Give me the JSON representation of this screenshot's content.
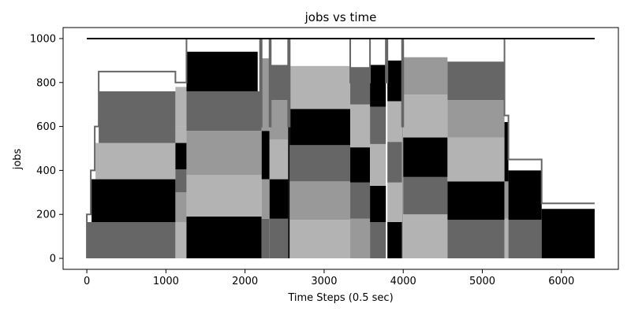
{
  "chart_data": {
    "type": "area",
    "title": "jobs vs time",
    "xlabel": "Time Steps (0.5 sec)",
    "ylabel": "jobs",
    "xlim": [
      -300,
      6720
    ],
    "ylim": [
      -50,
      1050
    ],
    "xticks": [
      0,
      1000,
      2000,
      3000,
      4000,
      5000,
      6000
    ],
    "yticks": [
      0,
      200,
      400,
      600,
      800,
      1000
    ],
    "grid": false,
    "legend": "none",
    "colors": {
      "black": "#000000",
      "dark_gray": "#666666",
      "mid_gray": "#999999",
      "light_gray": "#b3b3b3",
      "line_gray": "#666666"
    },
    "capacity_line": {
      "y": 1000,
      "x": [
        0,
        6420
      ]
    },
    "envelope": [
      [
        0,
        0
      ],
      [
        0,
        200
      ],
      [
        50,
        200
      ],
      [
        50,
        400
      ],
      [
        100,
        400
      ],
      [
        100,
        600
      ],
      [
        150,
        600
      ],
      [
        150,
        850
      ],
      [
        1120,
        850
      ],
      [
        1120,
        800
      ],
      [
        1260,
        800
      ],
      [
        1260,
        1000
      ],
      [
        2190,
        1000
      ],
      [
        2190,
        600
      ],
      [
        2210,
        600
      ],
      [
        2210,
        1000
      ],
      [
        2310,
        1000
      ],
      [
        2310,
        600
      ],
      [
        2325,
        600
      ],
      [
        2325,
        1000
      ],
      [
        2545,
        1000
      ],
      [
        2545,
        600
      ],
      [
        2565,
        600
      ],
      [
        2565,
        1000
      ],
      [
        3330,
        1000
      ],
      [
        3330,
        800
      ],
      [
        3580,
        800
      ],
      [
        3580,
        1000
      ],
      [
        3780,
        1000
      ],
      [
        3780,
        800
      ],
      [
        3800,
        800
      ],
      [
        3800,
        1000
      ],
      [
        3985,
        1000
      ],
      [
        3985,
        600
      ],
      [
        4000,
        600
      ],
      [
        4000,
        1000
      ],
      [
        5280,
        1000
      ],
      [
        5280,
        650
      ],
      [
        5330,
        650
      ],
      [
        5330,
        450
      ],
      [
        5750,
        450
      ],
      [
        5750,
        250
      ],
      [
        6420,
        250
      ]
    ],
    "blocks": [
      {
        "x": [
          0,
          1120
        ],
        "y": [
          0,
          165
        ],
        "shade": "dark_gray"
      },
      {
        "x": [
          60,
          1120
        ],
        "y": [
          165,
          360
        ],
        "shade": "black"
      },
      {
        "x": [
          110,
          1120
        ],
        "y": [
          360,
          525
        ],
        "shade": "light_gray"
      },
      {
        "x": [
          150,
          1120
        ],
        "y": [
          525,
          760
        ],
        "shade": "dark_gray"
      },
      {
        "x": [
          1120,
          1260
        ],
        "y": [
          0,
          165
        ],
        "shade": "light_gray"
      },
      {
        "x": [
          1120,
          1260
        ],
        "y": [
          165,
          300
        ],
        "shade": "mid_gray"
      },
      {
        "x": [
          1120,
          1260
        ],
        "y": [
          300,
          405
        ],
        "shade": "dark_gray"
      },
      {
        "x": [
          1120,
          1260
        ],
        "y": [
          405,
          525
        ],
        "shade": "black"
      },
      {
        "x": [
          1120,
          1260
        ],
        "y": [
          525,
          600
        ],
        "shade": "light_gray"
      },
      {
        "x": [
          1120,
          1260
        ],
        "y": [
          600,
          780
        ],
        "shade": "light_gray"
      },
      {
        "x": [
          1260,
          2210
        ],
        "y": [
          0,
          190
        ],
        "shade": "black"
      },
      {
        "x": [
          1260,
          2210
        ],
        "y": [
          190,
          380
        ],
        "shade": "light_gray"
      },
      {
        "x": [
          1260,
          2210
        ],
        "y": [
          380,
          580
        ],
        "shade": "mid_gray"
      },
      {
        "x": [
          1260,
          2210
        ],
        "y": [
          580,
          760
        ],
        "shade": "dark_gray"
      },
      {
        "x": [
          1260,
          2160
        ],
        "y": [
          760,
          940
        ],
        "shade": "black"
      },
      {
        "x": [
          2210,
          2310
        ],
        "y": [
          0,
          180
        ],
        "shade": "dark_gray"
      },
      {
        "x": [
          2210,
          2310
        ],
        "y": [
          180,
          360
        ],
        "shade": "mid_gray"
      },
      {
        "x": [
          2210,
          2310
        ],
        "y": [
          360,
          580
        ],
        "shade": "black"
      },
      {
        "x": [
          2210,
          2310
        ],
        "y": [
          580,
          910
        ],
        "shade": "mid_gray"
      },
      {
        "x": [
          2310,
          2545
        ],
        "y": [
          0,
          180
        ],
        "shade": "dark_gray"
      },
      {
        "x": [
          2310,
          2545
        ],
        "y": [
          180,
          360
        ],
        "shade": "black"
      },
      {
        "x": [
          2310,
          2545
        ],
        "y": [
          360,
          540
        ],
        "shade": "light_gray"
      },
      {
        "x": [
          2310,
          2545
        ],
        "y": [
          540,
          720
        ],
        "shade": "mid_gray"
      },
      {
        "x": [
          2310,
          2545
        ],
        "y": [
          720,
          880
        ],
        "shade": "dark_gray"
      },
      {
        "x": [
          2545,
          2565
        ],
        "y": [
          0,
          850
        ],
        "shade": "black"
      },
      {
        "x": [
          2565,
          3330
        ],
        "y": [
          0,
          175
        ],
        "shade": "light_gray"
      },
      {
        "x": [
          2565,
          3330
        ],
        "y": [
          175,
          350
        ],
        "shade": "mid_gray"
      },
      {
        "x": [
          2565,
          3330
        ],
        "y": [
          350,
          515
        ],
        "shade": "dark_gray"
      },
      {
        "x": [
          2565,
          3330
        ],
        "y": [
          515,
          680
        ],
        "shade": "black"
      },
      {
        "x": [
          2565,
          3330
        ],
        "y": [
          680,
          875
        ],
        "shade": "light_gray"
      },
      {
        "x": [
          3330,
          3580
        ],
        "y": [
          0,
          180
        ],
        "shade": "mid_gray"
      },
      {
        "x": [
          3330,
          3580
        ],
        "y": [
          180,
          345
        ],
        "shade": "dark_gray"
      },
      {
        "x": [
          3330,
          3580
        ],
        "y": [
          345,
          505
        ],
        "shade": "black"
      },
      {
        "x": [
          3330,
          3580
        ],
        "y": [
          505,
          700
        ],
        "shade": "light_gray"
      },
      {
        "x": [
          3330,
          3580
        ],
        "y": [
          700,
          870
        ],
        "shade": "dark_gray"
      },
      {
        "x": [
          3580,
          3780
        ],
        "y": [
          0,
          165
        ],
        "shade": "dark_gray"
      },
      {
        "x": [
          3580,
          3780
        ],
        "y": [
          165,
          330
        ],
        "shade": "black"
      },
      {
        "x": [
          3580,
          3780
        ],
        "y": [
          330,
          520
        ],
        "shade": "light_gray"
      },
      {
        "x": [
          3580,
          3780
        ],
        "y": [
          520,
          690
        ],
        "shade": "dark_gray"
      },
      {
        "x": [
          3580,
          3780
        ],
        "y": [
          690,
          880
        ],
        "shade": "black"
      },
      {
        "x": [
          3800,
          3985
        ],
        "y": [
          0,
          165
        ],
        "shade": "black"
      },
      {
        "x": [
          3800,
          3985
        ],
        "y": [
          165,
          345
        ],
        "shade": "light_gray"
      },
      {
        "x": [
          3800,
          3985
        ],
        "y": [
          345,
          530
        ],
        "shade": "dark_gray"
      },
      {
        "x": [
          3800,
          3985
        ],
        "y": [
          530,
          715
        ],
        "shade": "light_gray"
      },
      {
        "x": [
          3800,
          3985
        ],
        "y": [
          715,
          900
        ],
        "shade": "black"
      },
      {
        "x": [
          3985,
          4000
        ],
        "y": [
          0,
          600
        ],
        "shade": "mid_gray"
      },
      {
        "x": [
          4000,
          4560
        ],
        "y": [
          0,
          200
        ],
        "shade": "light_gray"
      },
      {
        "x": [
          4000,
          4560
        ],
        "y": [
          200,
          370
        ],
        "shade": "dark_gray"
      },
      {
        "x": [
          4000,
          4560
        ],
        "y": [
          370,
          550
        ],
        "shade": "black"
      },
      {
        "x": [
          4000,
          4560
        ],
        "y": [
          550,
          745
        ],
        "shade": "light_gray"
      },
      {
        "x": [
          4000,
          4560
        ],
        "y": [
          745,
          915
        ],
        "shade": "mid_gray"
      },
      {
        "x": [
          4560,
          5280
        ],
        "y": [
          0,
          175
        ],
        "shade": "dark_gray"
      },
      {
        "x": [
          4560,
          5280
        ],
        "y": [
          175,
          350
        ],
        "shade": "black"
      },
      {
        "x": [
          4560,
          5280
        ],
        "y": [
          350,
          550
        ],
        "shade": "light_gray"
      },
      {
        "x": [
          4560,
          5280
        ],
        "y": [
          550,
          720
        ],
        "shade": "mid_gray"
      },
      {
        "x": [
          4560,
          5280
        ],
        "y": [
          720,
          895
        ],
        "shade": "dark_gray"
      },
      {
        "x": [
          5280,
          5330
        ],
        "y": [
          0,
          180
        ],
        "shade": "light_gray"
      },
      {
        "x": [
          5280,
          5330
        ],
        "y": [
          180,
          350
        ],
        "shade": "mid_gray"
      },
      {
        "x": [
          5280,
          5330
        ],
        "y": [
          350,
          620
        ],
        "shade": "black"
      },
      {
        "x": [
          5330,
          5750
        ],
        "y": [
          0,
          175
        ],
        "shade": "dark_gray"
      },
      {
        "x": [
          5330,
          5750
        ],
        "y": [
          175,
          400
        ],
        "shade": "black"
      },
      {
        "x": [
          5750,
          6420
        ],
        "y": [
          0,
          225
        ],
        "shade": "black"
      }
    ]
  }
}
